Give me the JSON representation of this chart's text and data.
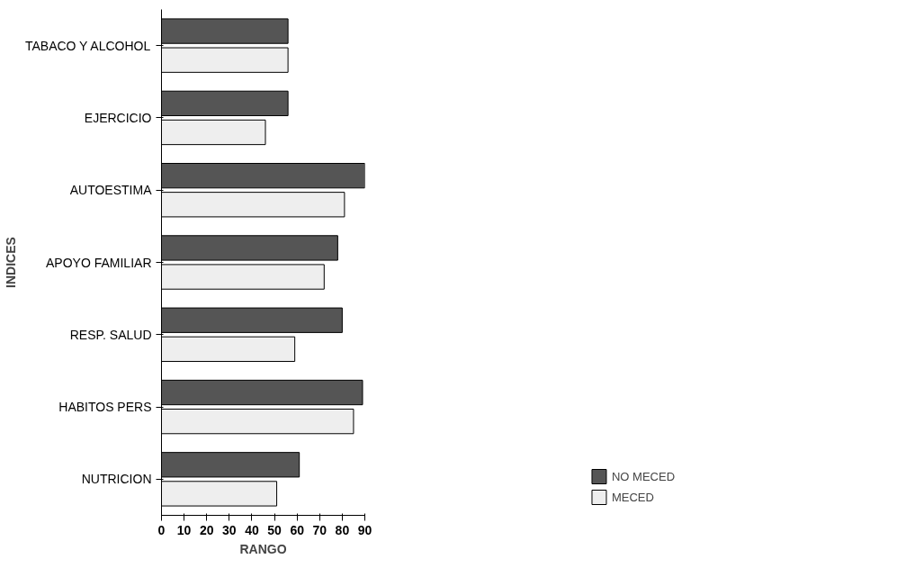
{
  "chart_data": {
    "type": "bar",
    "orientation": "horizontal",
    "xlabel": "RANGO",
    "ylabel": "INDICES",
    "categories": [
      "TABACO Y ALCOHOL",
      "EJERCICIO",
      "AUTOESTIMA",
      "APOYO FAMILIAR",
      "RESP. SALUD",
      "HABITOS PERS",
      "NUTRICION"
    ],
    "series": [
      {
        "name": "NO MECED",
        "color": "#555555",
        "values": [
          56,
          56,
          90,
          78,
          80,
          89,
          61
        ]
      },
      {
        "name": "MECED",
        "color": "#eeeeee",
        "values": [
          56,
          46,
          81,
          72,
          59,
          85,
          51
        ]
      }
    ],
    "xlim": [
      0,
      90
    ],
    "xticks": [
      0,
      10,
      20,
      30,
      40,
      50,
      60,
      70,
      80,
      90
    ],
    "legend": "bottom right"
  }
}
